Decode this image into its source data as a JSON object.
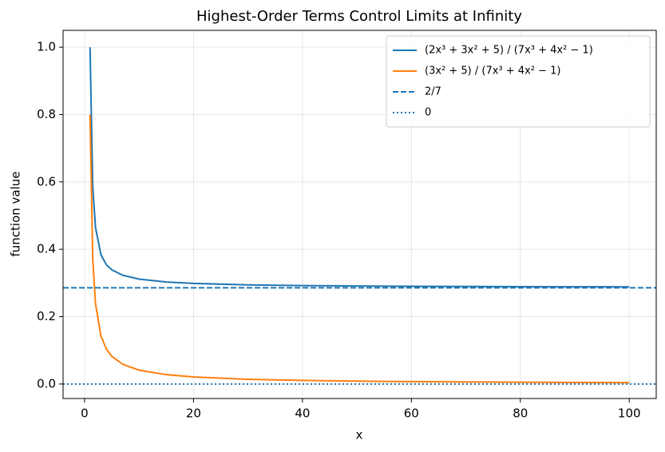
{
  "chart_data": {
    "type": "line",
    "title": "Highest-Order Terms Control Limits at Infinity",
    "xlabel": "x",
    "ylabel": "function value",
    "x": [
      1,
      1.5,
      2,
      3,
      4,
      5,
      7,
      10,
      15,
      20,
      30,
      40,
      50,
      60,
      70,
      80,
      90,
      100
    ],
    "series": [
      {
        "name": "(2x³ + 3x² + 5) / (7x³ + 4x² − 1)",
        "color": "#1f77b4",
        "values": [
          1.0,
          0.585,
          0.465,
          0.384,
          0.354,
          0.339,
          0.323,
          0.3115,
          0.303,
          0.2987,
          0.2944,
          0.2923,
          0.291,
          0.2901,
          0.2895,
          0.289,
          0.2887,
          0.2884
        ]
      },
      {
        "name": "(3x² + 5) / (7x³ + 4x² − 1)",
        "color": "#ff7f0e",
        "values": [
          0.8,
          0.3715,
          0.2394,
          0.1429,
          0.1037,
          0.0821,
          0.0586,
          0.0412,
          0.0277,
          0.0209,
          0.014,
          0.0106,
          0.00848,
          0.00708,
          0.00607,
          0.00532,
          0.00473,
          0.00426
        ]
      }
    ],
    "hlines": [
      {
        "name": "2/7",
        "value": 0.2857,
        "color": "#1f77b4",
        "style": "dashed"
      },
      {
        "name": "0",
        "value": 0,
        "color": "#1f77b4",
        "style": "dotted"
      }
    ],
    "xlim": [
      -3.95,
      104.95
    ],
    "xticks": [
      0,
      20,
      40,
      60,
      80,
      100
    ],
    "ylim": [
      -0.043,
      1.05
    ],
    "yticks": [
      {
        "value": 0,
        "label": "0.0"
      },
      0.2,
      0.4,
      0.6,
      0.8,
      {
        "value": 1,
        "label": "1.0"
      }
    ],
    "grid": true,
    "legend": "upper right"
  }
}
